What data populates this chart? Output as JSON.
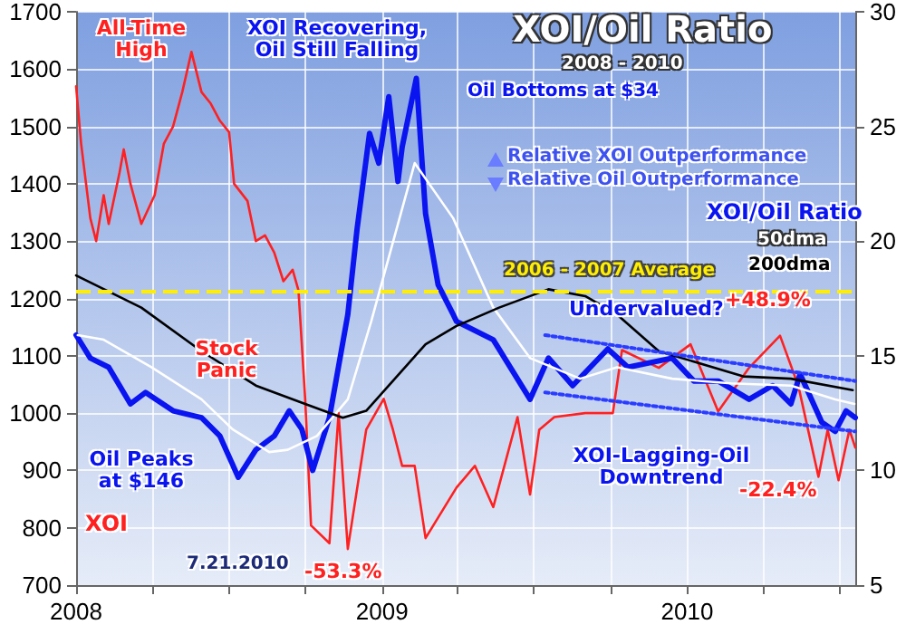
{
  "chart_data": {
    "type": "line",
    "title": "XOI/Oil Ratio",
    "subtitle": "2008 - 2010",
    "xlim": [
      "2008-01-01",
      "2010-07-21"
    ],
    "xticks": [
      {
        "value": "2008-01-01",
        "label": "2008"
      },
      {
        "value": "2008-04-01",
        "label": null
      },
      {
        "value": "2008-07-01",
        "label": null
      },
      {
        "value": "2008-10-01",
        "label": null
      },
      {
        "value": "2009-01-01",
        "label": "2009"
      },
      {
        "value": "2009-04-01",
        "label": null
      },
      {
        "value": "2009-07-01",
        "label": null
      },
      {
        "value": "2009-10-01",
        "label": null
      },
      {
        "value": "2010-01-01",
        "label": "2010"
      },
      {
        "value": "2010-04-01",
        "label": null
      },
      {
        "value": "2010-07-01",
        "label": null
      }
    ],
    "ylim": [
      700,
      1700
    ],
    "yticks": [
      700,
      800,
      900,
      1000,
      1100,
      1200,
      1300,
      1400,
      1500,
      1600,
      1700
    ],
    "y2lim": [
      5,
      30
    ],
    "y2ticks": [
      5,
      10,
      15,
      20,
      25,
      30
    ],
    "grid": true,
    "legend": false,
    "marker": "none",
    "series": [
      {
        "name": "XOI",
        "color": "#ff2020",
        "axis": "y",
        "x": [
          "2008-01-01",
          "2008-01-07",
          "2008-01-18",
          "2008-01-25",
          "2008-02-03",
          "2008-02-09",
          "2008-02-22",
          "2008-02-27",
          "2008-03-06",
          "2008-03-19",
          "2008-04-04",
          "2008-04-15",
          "2008-04-26",
          "2008-05-07",
          "2008-05-18",
          "2008-05-30",
          "2008-06-10",
          "2008-06-21",
          "2008-07-02",
          "2008-07-08",
          "2008-07-24",
          "2008-08-03",
          "2008-08-14",
          "2008-08-25",
          "2008-09-05",
          "2008-09-16",
          "2008-09-23",
          "2008-10-01",
          "2008-10-08",
          "2008-10-30",
          "2008-11-10",
          "2008-11-21",
          "2008-12-13",
          "2009-01-03",
          "2009-01-14",
          "2009-01-25",
          "2009-02-09",
          "2009-02-22",
          "2009-03-31",
          "2009-04-22",
          "2009-05-14",
          "2009-06-12",
          "2009-06-27",
          "2009-07-08",
          "2009-07-26",
          "2009-09-01",
          "2009-10-04",
          "2009-10-15",
          "2009-11-28",
          "2010-01-05",
          "2010-02-07",
          "2010-03-16",
          "2010-04-22",
          "2010-05-14",
          "2010-06-07",
          "2010-06-18",
          "2010-07-01",
          "2010-07-14",
          "2010-07-21"
        ],
        "values": [
          1570,
          1470,
          1340,
          1300,
          1380,
          1330,
          1420,
          1460,
          1400,
          1330,
          1380,
          1470,
          1500,
          1560,
          1630,
          1560,
          1540,
          1510,
          1490,
          1400,
          1370,
          1300,
          1310,
          1280,
          1230,
          1250,
          1214,
          1025,
          804,
          773,
          1000,
          763,
          971,
          1025,
          971,
          908,
          908,
          782,
          870,
          908,
          836,
          993,
          858,
          971,
          993,
          1000,
          1000,
          1110,
          1079,
          1120,
          1003,
          1079,
          1135,
          1047,
          889,
          971,
          883,
          971,
          940
        ]
      },
      {
        "name": "XOI/Oil Ratio",
        "color": "#0a14f0",
        "axis": "y2",
        "x": [
          "2008-01-01",
          "2008-01-18",
          "2008-02-09",
          "2008-03-06",
          "2008-03-24",
          "2008-04-26",
          "2008-05-30",
          "2008-06-21",
          "2008-07-13",
          "2008-08-03",
          "2008-08-25",
          "2008-09-12",
          "2008-09-27",
          "2008-10-10",
          "2008-10-30",
          "2008-11-21",
          "2008-12-02",
          "2008-12-17",
          "2008-12-28",
          "2009-01-09",
          "2009-01-20",
          "2009-01-25",
          "2009-02-11",
          "2009-02-22",
          "2009-03-09",
          "2009-03-27",
          "2009-03-31",
          "2009-05-14",
          "2009-06-27",
          "2009-07-19",
          "2009-08-17",
          "2009-09-28",
          "2009-10-22",
          "2009-12-14",
          "2010-01-09",
          "2010-02-07",
          "2010-03-16",
          "2010-04-13",
          "2010-05-05",
          "2010-05-16",
          "2010-06-11",
          "2010-06-27",
          "2010-07-10",
          "2010-07-21"
        ],
        "values": [
          15.9,
          14.9,
          14.5,
          12.9,
          13.4,
          12.6,
          12.3,
          11.5,
          9.7,
          10.9,
          11.5,
          12.6,
          11.8,
          10.0,
          12.3,
          16.8,
          20.5,
          24.7,
          23.4,
          26.3,
          22.6,
          24.1,
          27.1,
          21.2,
          18.1,
          16.8,
          16.5,
          15.7,
          13.1,
          14.9,
          13.7,
          15.3,
          14.5,
          14.9,
          13.9,
          13.9,
          13.1,
          13.7,
          12.9,
          14.2,
          12.1,
          11.7,
          12.6,
          12.3
        ]
      },
      {
        "name": "50dma",
        "color": "#ffffff",
        "axis": "y2",
        "x": [
          "2008-01-03",
          "2008-02-03",
          "2008-03-31",
          "2008-05-30",
          "2008-07-06",
          "2008-08-19",
          "2008-09-10",
          "2008-10-15",
          "2008-11-21",
          "2008-12-19",
          "2009-02-09",
          "2009-03-27",
          "2009-05-14",
          "2009-06-27",
          "2009-08-26",
          "2009-10-09",
          "2009-12-14",
          "2010-02-22",
          "2010-05-05",
          "2010-06-27",
          "2010-07-20"
        ],
        "values": [
          15.9,
          15.7,
          14.5,
          13.1,
          11.8,
          10.8,
          10.9,
          11.5,
          13.1,
          16.5,
          23.4,
          21.0,
          17.1,
          14.9,
          14.0,
          14.5,
          14.0,
          13.8,
          13.7,
          13.1,
          12.9
        ]
      },
      {
        "name": "200dma",
        "color": "#000000",
        "axis": "y2",
        "x": [
          "2008-01-01",
          "2008-03-19",
          "2008-05-30",
          "2008-08-03",
          "2008-10-01",
          "2008-11-15",
          "2008-12-13",
          "2009-02-22",
          "2009-03-31",
          "2009-05-21",
          "2009-07-19",
          "2009-09-01",
          "2009-10-09",
          "2009-11-28",
          "2010-03-09",
          "2010-05-05",
          "2010-07-18"
        ],
        "values": [
          18.5,
          17.1,
          15.2,
          13.7,
          12.9,
          12.3,
          12.6,
          15.5,
          16.3,
          17.1,
          17.9,
          17.6,
          16.8,
          15.2,
          14.1,
          14.0,
          13.5
        ]
      },
      {
        "color": "#2a3cff",
        "axis": "y2",
        "line_style": "dotted",
        "x": [
          "2009-07-15",
          "2010-07-21"
        ],
        "values": [
          15.9,
          13.9
        ]
      },
      {
        "color": "#2a3cff",
        "axis": "y2",
        "line_style": "dotted",
        "x": [
          "2009-07-15",
          "2010-07-21"
        ],
        "values": [
          13.4,
          11.7
        ]
      }
    ],
    "ref_lines": [
      {
        "axis": "y2",
        "value": 17.8,
        "label": "2006 - 2007 Average",
        "color": "#ffee00",
        "line_style": "dashed"
      }
    ],
    "annotations": [
      "All-Time High",
      "XOI Recovering, Oil Still Falling",
      "Oil Bottoms at $34",
      "Relative XOI Outperformance",
      "Relative Oil Outperformance",
      "Undervalued?",
      "+48.9%",
      "Stock Panic",
      "Oil Peaks at $146",
      "XOI-Lagging-Oil Downtrend",
      "-22.4%",
      "-53.3%",
      "7.21.2010"
    ]
  }
}
